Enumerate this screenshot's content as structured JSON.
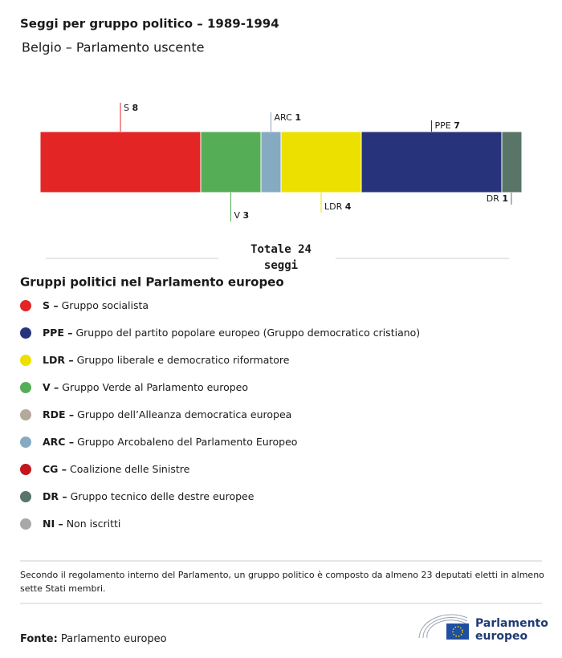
{
  "chart_data": {
    "type": "bar",
    "orientation": "horizontal",
    "stacked": true,
    "title": "Seggi per gruppo politico – 1989-1994",
    "subtitle": "Belgio – Parlamento uscente",
    "series": [
      {
        "name": "S",
        "color": "#e32526",
        "values": [
          8
        ]
      },
      {
        "name": "V",
        "color": "#55ae56",
        "values": [
          3
        ]
      },
      {
        "name": "ARC",
        "color": "#87aac3",
        "values": [
          1
        ]
      },
      {
        "name": "LDR",
        "color": "#ebe000",
        "values": [
          4
        ]
      },
      {
        "name": "PPE",
        "color": "#27347b",
        "values": [
          7
        ]
      },
      {
        "name": "DR",
        "color": "#587568",
        "values": [
          1
        ]
      }
    ],
    "total_label": "Totale",
    "total": 24,
    "total_unit": "seggi"
  },
  "legend": {
    "title": "Gruppi politici nel Parlamento europeo",
    "items": [
      {
        "code": "S –",
        "label": "Gruppo socialista",
        "color": "#e32526"
      },
      {
        "code": "PPE –",
        "label": "Gruppo del partito popolare europeo (Gruppo democratico cristiano)",
        "color": "#27347b"
      },
      {
        "code": "LDR –",
        "label": "Gruppo liberale e democratico riformatore",
        "color": "#ebe000"
      },
      {
        "code": "V –",
        "label": "Gruppo Verde al Parlamento europeo",
        "color": "#55ae56"
      },
      {
        "code": "RDE –",
        "label": "Gruppo dell’Alleanza democratica europea",
        "color": "#b3aa9c"
      },
      {
        "code": "ARC –",
        "label": "Gruppo Arcobaleno del Parlamento Europeo",
        "color": "#87aac3"
      },
      {
        "code": "CG –",
        "label": "Coalizione delle Sinistre",
        "color": "#c4161c"
      },
      {
        "code": "DR –",
        "label": "Gruppo tecnico delle destre europee",
        "color": "#587568"
      },
      {
        "code": "NI –",
        "label": "Non iscritti",
        "color": "#a8a8a8"
      }
    ]
  },
  "note": [
    "Secondo il regolamento interno del Parlamento, un gruppo politico è composto da almeno 23 deputati eletti in almeno",
    "sette Stati membri."
  ],
  "source_label": "Fonte:",
  "source": "Parlamento europeo",
  "logo": [
    "Parlamento",
    "europeo"
  ]
}
